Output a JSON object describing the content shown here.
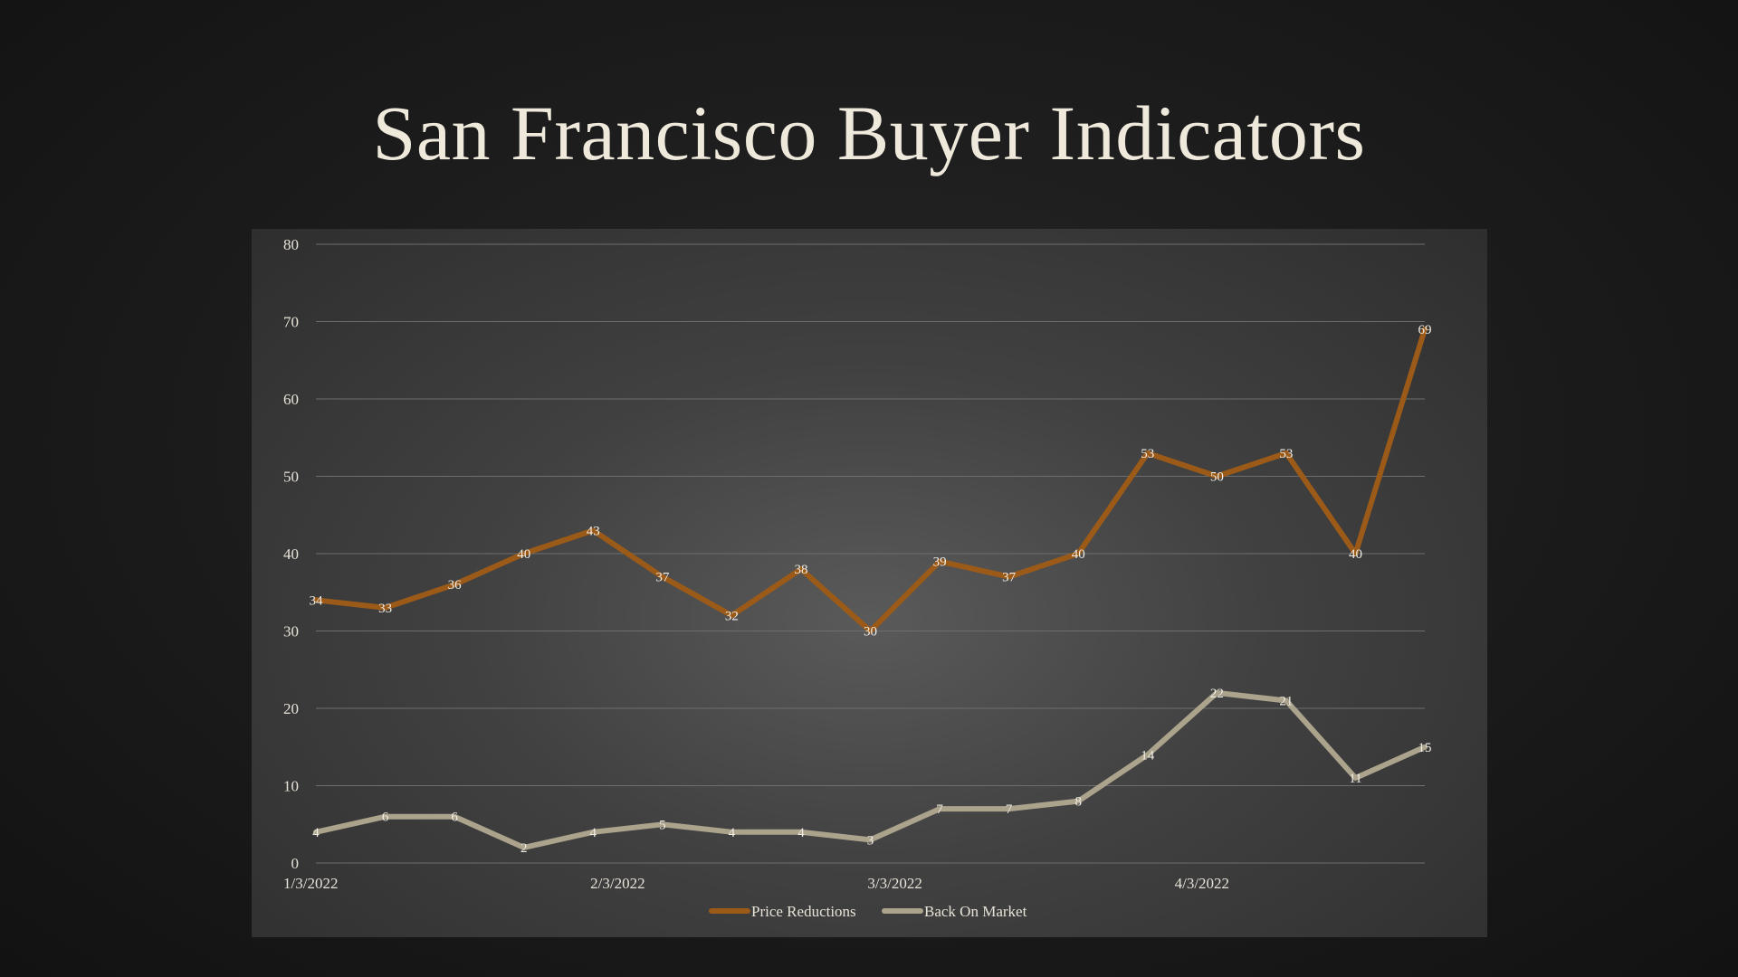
{
  "slide": {
    "title": "San Francisco Buyer Indicators"
  },
  "colors": {
    "price_reductions": "#9b5a18",
    "back_on_market": "#aba38c"
  },
  "chart_data": {
    "type": "line",
    "title": "",
    "xlabel": "",
    "ylabel": "",
    "ylim": [
      0,
      80
    ],
    "yticks": [
      0,
      10,
      20,
      30,
      40,
      50,
      60,
      70,
      80
    ],
    "x_tick_labels": [
      {
        "index": 0,
        "label": "1/3/2022"
      },
      {
        "index": 4.43,
        "label": "2/3/2022"
      },
      {
        "index": 8.43,
        "label": "3/3/2022"
      },
      {
        "index": 12.86,
        "label": "4/3/2022"
      }
    ],
    "grid": true,
    "legend_position": "bottom",
    "series": [
      {
        "name": "Price Reductions",
        "values": [
          34,
          33,
          36,
          40,
          43,
          37,
          32,
          38,
          30,
          39,
          37,
          40,
          53,
          50,
          53,
          40,
          69
        ]
      },
      {
        "name": "Back On Market",
        "values": [
          4,
          6,
          6,
          2,
          4,
          5,
          4,
          4,
          3,
          7,
          7,
          8,
          14,
          22,
          21,
          11,
          15
        ]
      }
    ]
  }
}
